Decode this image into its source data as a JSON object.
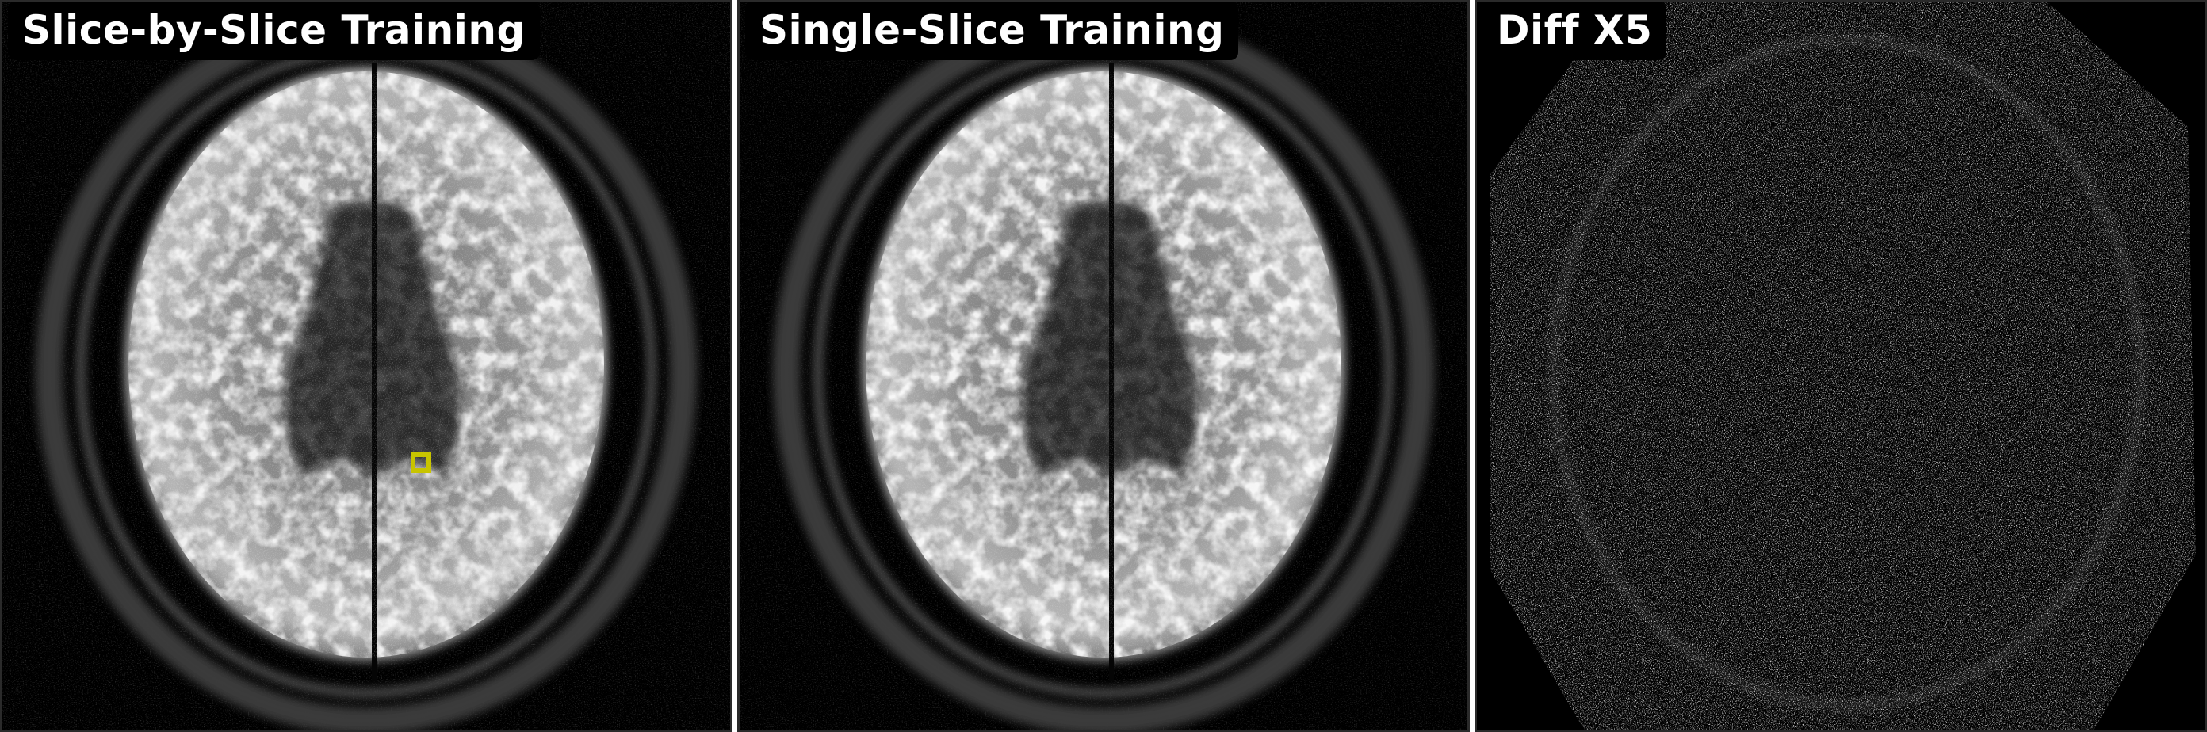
{
  "panels": [
    {
      "title": "Slice-by-Slice Training",
      "image": "axial-brain-mri",
      "roi_color": "#c8c400"
    },
    {
      "title": "Single-Slice Training",
      "image": "axial-brain-mri",
      "roi_color": "#1a8a1a"
    },
    {
      "title": "Diff X5",
      "image": "difference-map-noise"
    }
  ]
}
